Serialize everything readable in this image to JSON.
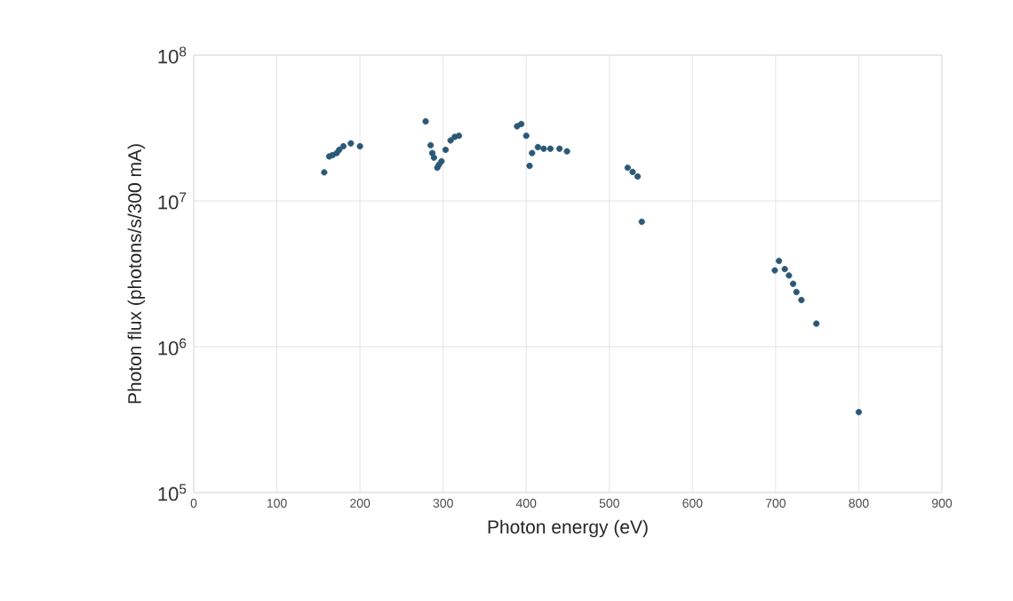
{
  "chart_data": {
    "type": "scatter",
    "xlabel": "Photon energy (eV)",
    "ylabel": "Photon flux (photons/s/300 mA)",
    "log": "y",
    "grid": true,
    "marker": "circle",
    "xlim": [
      0,
      900
    ],
    "xticks": [
      0,
      100,
      200,
      300,
      400,
      500,
      600,
      700,
      800,
      900
    ],
    "ylim": [
      100000,
      100000000
    ],
    "yticks": [
      {
        "value": 100000,
        "label": "10$^{5}$"
      },
      {
        "value": 1000000,
        "label": "10$^{6}$"
      },
      {
        "value": 10000000,
        "label": "10$^{7}$"
      },
      {
        "value": 100000000,
        "label": "10$^{8}$"
      }
    ],
    "series": [
      {
        "color": "#2b5876",
        "x": [
          157,
          163,
          167,
          172,
          175,
          180,
          189,
          200,
          279,
          285,
          287,
          289,
          293,
          295,
          298,
          303,
          309,
          314,
          319,
          389,
          394,
          400,
          404,
          407,
          414,
          421,
          429,
          440,
          449,
          522,
          528,
          534,
          539,
          699,
          704,
          711,
          716,
          721,
          725,
          731,
          749,
          800
        ],
        "values": [
          15700000,
          20200000,
          20600000,
          21300000,
          22400000,
          23700000,
          24800000,
          23700000,
          35100000,
          24100000,
          21300000,
          19800000,
          16900000,
          17700000,
          18700000,
          22400000,
          26000000,
          27500000,
          28000000,
          32500000,
          33700000,
          28000000,
          17400000,
          21300000,
          23400000,
          22800000,
          22800000,
          22800000,
          21900000,
          16900000,
          15800000,
          14700000,
          7200000,
          3340000,
          3880000,
          3410000,
          3080000,
          2700000,
          2370000,
          2090000,
          1440000,
          356000
        ]
      }
    ]
  }
}
